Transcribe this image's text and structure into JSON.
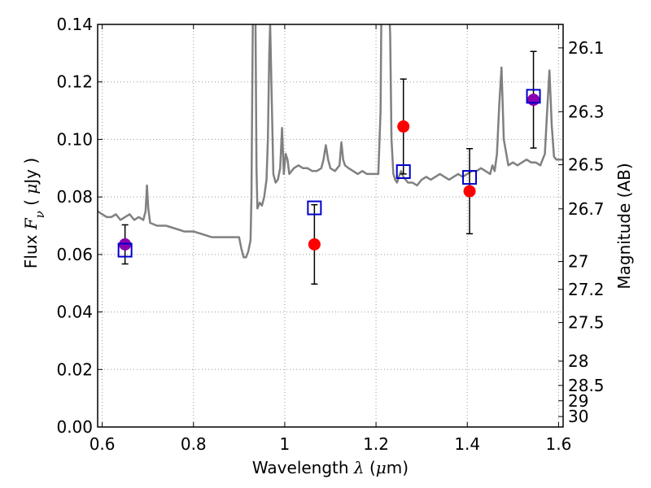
{
  "chart_data": {
    "type": "scatter",
    "xlabel": {
      "parts": [
        {
          "text": "Wavelength  ",
          "math": false
        },
        {
          "text": "λ",
          "math": true
        },
        {
          "text": " (",
          "math": false
        },
        {
          "text": "μ",
          "math": true
        },
        {
          "text": "m)",
          "math": false
        }
      ]
    },
    "ylabel": {
      "parts": [
        {
          "text": "Flux  ",
          "math": false
        },
        {
          "text": "F",
          "math": true
        },
        {
          "text": "ν",
          "math": true,
          "sub": true
        },
        {
          "text": "  ( ",
          "math": false
        },
        {
          "text": "μ",
          "math": true
        },
        {
          "text": "Jy )",
          "math": false
        }
      ]
    },
    "y2label": "Magnitude (AB)",
    "xlim": [
      0.59,
      1.61
    ],
    "ylim": [
      0.0,
      0.14
    ],
    "grid": true,
    "x_ticks": [
      0.6,
      0.8,
      1.0,
      1.2,
      1.4,
      1.6
    ],
    "x_tick_labels": [
      "0.6",
      "0.8",
      "1",
      "1.2",
      "1.4",
      "1.6"
    ],
    "y_ticks": [
      0.0,
      0.02,
      0.04,
      0.06,
      0.08,
      0.1,
      0.12,
      0.14
    ],
    "y_tick_labels": [
      "0.00",
      "0.02",
      "0.04",
      "0.06",
      "0.08",
      "0.10",
      "0.12",
      "0.14"
    ],
    "mag_ticks": [
      26.1,
      26.3,
      26.5,
      26.7,
      27,
      27.2,
      27.5,
      28,
      28.5,
      29,
      30
    ],
    "mag_tick_labels": [
      "26.1",
      "26.3",
      "26.5",
      "26.7",
      "27",
      "27.2",
      "27.5",
      "28",
      "28.5",
      "29",
      "30"
    ],
    "colors": {
      "spectrum": "#808080",
      "observed": "#ff0000",
      "model": "#0000cc",
      "errorbar": "#000000",
      "overlap": "#8b00b0",
      "grid": "#9a9a9a"
    },
    "series": [
      {
        "role": "observed-flux-with-errors",
        "marker": "circle",
        "points": [
          {
            "x": 0.65,
            "y": 0.0635,
            "err": 0.0068
          },
          {
            "x": 1.065,
            "y": 0.0635,
            "err": 0.0138
          },
          {
            "x": 1.26,
            "y": 0.1045,
            "err": 0.0165
          },
          {
            "x": 1.405,
            "y": 0.082,
            "err": 0.0148
          },
          {
            "x": 1.545,
            "y": 0.1138,
            "err": 0.0168
          }
        ]
      },
      {
        "role": "model-band-flux",
        "marker": "open-square",
        "points": [
          {
            "x": 0.65,
            "y": 0.0615
          },
          {
            "x": 1.065,
            "y": 0.0762
          },
          {
            "x": 1.26,
            "y": 0.0888
          },
          {
            "x": 1.405,
            "y": 0.0868
          },
          {
            "x": 1.545,
            "y": 0.115
          }
        ]
      }
    ],
    "spectrum": {
      "x": [
        0.59,
        0.6,
        0.61,
        0.62,
        0.63,
        0.64,
        0.65,
        0.66,
        0.67,
        0.68,
        0.69,
        0.695,
        0.698,
        0.701,
        0.705,
        0.72,
        0.74,
        0.76,
        0.78,
        0.8,
        0.82,
        0.84,
        0.86,
        0.88,
        0.9,
        0.905,
        0.91,
        0.915,
        0.92,
        0.925,
        0.927,
        0.93,
        0.933,
        0.936,
        0.938,
        0.94,
        0.945,
        0.95,
        0.955,
        0.96,
        0.963,
        0.966,
        0.968,
        0.97,
        0.975,
        0.98,
        0.985,
        0.99,
        0.994,
        0.998,
        1.002,
        1.006,
        1.01,
        1.015,
        1.02,
        1.03,
        1.04,
        1.05,
        1.06,
        1.07,
        1.08,
        1.085,
        1.09,
        1.095,
        1.1,
        1.11,
        1.12,
        1.124,
        1.128,
        1.132,
        1.14,
        1.15,
        1.16,
        1.17,
        1.18,
        1.19,
        1.2,
        1.205,
        1.21,
        1.212,
        1.216,
        1.22,
        1.225,
        1.228,
        1.231,
        1.234,
        1.238,
        1.242,
        1.246,
        1.25,
        1.255,
        1.26,
        1.27,
        1.28,
        1.29,
        1.3,
        1.31,
        1.32,
        1.33,
        1.34,
        1.35,
        1.36,
        1.37,
        1.38,
        1.39,
        1.4,
        1.41,
        1.42,
        1.43,
        1.44,
        1.45,
        1.455,
        1.46,
        1.465,
        1.47,
        1.475,
        1.48,
        1.49,
        1.5,
        1.51,
        1.52,
        1.53,
        1.54,
        1.55,
        1.56,
        1.57,
        1.575,
        1.58,
        1.585,
        1.59,
        1.595,
        1.6,
        1.61
      ],
      "y": [
        0.075,
        0.074,
        0.073,
        0.073,
        0.074,
        0.072,
        0.073,
        0.074,
        0.072,
        0.073,
        0.072,
        0.075,
        0.084,
        0.076,
        0.071,
        0.07,
        0.07,
        0.069,
        0.068,
        0.068,
        0.067,
        0.066,
        0.066,
        0.066,
        0.066,
        0.062,
        0.059,
        0.059,
        0.061,
        0.065,
        0.08,
        0.142,
        0.15,
        0.14,
        0.09,
        0.076,
        0.078,
        0.077,
        0.08,
        0.086,
        0.1,
        0.13,
        0.14,
        0.125,
        0.088,
        0.085,
        0.086,
        0.09,
        0.104,
        0.088,
        0.095,
        0.093,
        0.088,
        0.089,
        0.09,
        0.091,
        0.09,
        0.09,
        0.089,
        0.089,
        0.09,
        0.093,
        0.098,
        0.093,
        0.09,
        0.089,
        0.091,
        0.099,
        0.093,
        0.091,
        0.09,
        0.089,
        0.088,
        0.089,
        0.088,
        0.088,
        0.088,
        0.088,
        0.11,
        0.15,
        0.15,
        0.15,
        0.15,
        0.15,
        0.136,
        0.1,
        0.088,
        0.086,
        0.085,
        0.087,
        0.089,
        0.087,
        0.085,
        0.085,
        0.084,
        0.086,
        0.087,
        0.086,
        0.087,
        0.088,
        0.087,
        0.086,
        0.087,
        0.088,
        0.087,
        0.088,
        0.089,
        0.089,
        0.09,
        0.089,
        0.088,
        0.091,
        0.089,
        0.095,
        0.112,
        0.125,
        0.1,
        0.091,
        0.092,
        0.091,
        0.092,
        0.093,
        0.092,
        0.092,
        0.091,
        0.095,
        0.11,
        0.124,
        0.105,
        0.094,
        0.093,
        0.093,
        0.093
      ]
    }
  }
}
